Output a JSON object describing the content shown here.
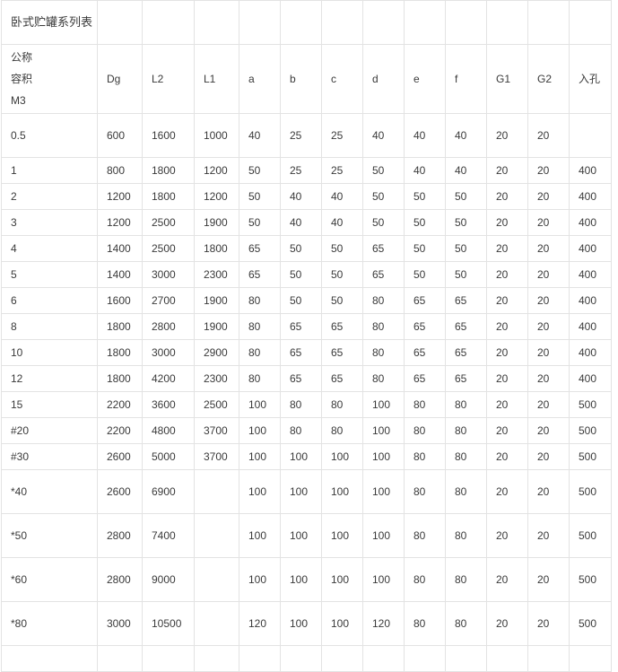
{
  "table": {
    "title": "卧式贮罐系列表",
    "header_first": [
      "公称",
      "容积",
      "M3"
    ],
    "headers": [
      "Dg",
      "L2",
      "L1",
      "a",
      "b",
      "c",
      "d",
      "e",
      "f",
      "G1",
      "G2",
      "入孔"
    ],
    "rows": [
      [
        "0.5",
        "600",
        "1600",
        "1000",
        "40",
        "25",
        "25",
        "40",
        "40",
        "40",
        "20",
        "20",
        ""
      ],
      [
        "1",
        "800",
        "1800",
        "1200",
        "50",
        "25",
        "25",
        "50",
        "40",
        "40",
        "20",
        "20",
        "400"
      ],
      [
        "2",
        "1200",
        "1800",
        "1200",
        "50",
        "40",
        "40",
        "50",
        "50",
        "50",
        "20",
        "20",
        "400"
      ],
      [
        "3",
        "1200",
        "2500",
        "1900",
        "50",
        "40",
        "40",
        "50",
        "50",
        "50",
        "20",
        "20",
        "400"
      ],
      [
        "4",
        "1400",
        "2500",
        "1800",
        "65",
        "50",
        "50",
        "65",
        "50",
        "50",
        "20",
        "20",
        "400"
      ],
      [
        "5",
        "1400",
        "3000",
        "2300",
        "65",
        "50",
        "50",
        "65",
        "50",
        "50",
        "20",
        "20",
        "400"
      ],
      [
        "6",
        "1600",
        "2700",
        "1900",
        "80",
        "50",
        "50",
        "80",
        "65",
        "65",
        "20",
        "20",
        "400"
      ],
      [
        "8",
        "1800",
        "2800",
        "1900",
        "80",
        "65",
        "65",
        "80",
        "65",
        "65",
        "20",
        "20",
        "400"
      ],
      [
        "10",
        "1800",
        "3000",
        "2900",
        "80",
        "65",
        "65",
        "80",
        "65",
        "65",
        "20",
        "20",
        "400"
      ],
      [
        "12",
        "1800",
        "4200",
        "2300",
        "80",
        "65",
        "65",
        "80",
        "65",
        "65",
        "20",
        "20",
        "400"
      ],
      [
        "15",
        "2200",
        "3600",
        "2500",
        "100",
        "80",
        "80",
        "100",
        "80",
        "80",
        "20",
        "20",
        "500"
      ],
      [
        "#20",
        "2200",
        "4800",
        "3700",
        "100",
        "80",
        "80",
        "100",
        "80",
        "80",
        "20",
        "20",
        "500"
      ],
      [
        "#30",
        "2600",
        "5000",
        "3700",
        "100",
        "100",
        "100",
        "100",
        "80",
        "80",
        "20",
        "20",
        "500"
      ],
      [
        "*40",
        "2600",
        "6900",
        "",
        "100",
        "100",
        "100",
        "100",
        "80",
        "80",
        "20",
        "20",
        "500"
      ],
      [
        "*50",
        "2800",
        "7400",
        "",
        "100",
        "100",
        "100",
        "100",
        "80",
        "80",
        "20",
        "20",
        "500"
      ],
      [
        "*60",
        "2800",
        "9000",
        "",
        "100",
        "100",
        "100",
        "100",
        "80",
        "80",
        "20",
        "20",
        "500"
      ],
      [
        "*80",
        "3000",
        "10500",
        "",
        "120",
        "100",
        "100",
        "120",
        "80",
        "80",
        "20",
        "20",
        "500"
      ]
    ]
  }
}
